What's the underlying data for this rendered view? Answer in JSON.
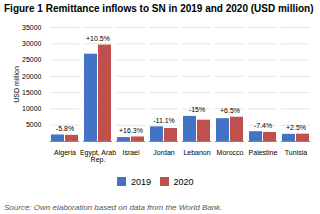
{
  "chart_data": {
    "type": "bar",
    "title": "Figure 1 Remittance inflows to SN in 2019 and 2020 (USD million)",
    "ylabel": "USD million",
    "categories": [
      "Algeria",
      "Egypt, Arab\nRep.",
      "Israel",
      "Jordan",
      "Lebanon",
      "Morocco",
      "Palestine",
      "Tunisia"
    ],
    "series": [
      {
        "name": "2019",
        "color": "#4472C4",
        "values": [
          2000,
          26800,
          1200,
          4500,
          7700,
          7000,
          3000,
          2200
        ]
      },
      {
        "name": "2020",
        "color": "#C0504D",
        "values": [
          1884,
          29600,
          1395,
          4000,
          6545,
          7455,
          2778,
          2255
        ]
      }
    ],
    "annotations": [
      {
        "category": "Algeria",
        "text": "-5.8%"
      },
      {
        "category": "Egypt, Arab\nRep.",
        "text": "+10.5%"
      },
      {
        "category": "Israel",
        "text": "+16.3%"
      },
      {
        "category": "Jordan",
        "text": "-11.1%"
      },
      {
        "category": "Lebanon",
        "text": "-15%"
      },
      {
        "category": "Morocco",
        "text": "+6.5%"
      },
      {
        "category": "Palestine",
        "text": "-7.4%"
      },
      {
        "category": "Tunisia",
        "text": "+2.5%"
      }
    ],
    "ylim": [
      0,
      35000
    ],
    "yticks": [
      5000,
      10000,
      15000,
      20000,
      25000,
      30000,
      35000
    ],
    "grid": true,
    "legend": "bottom",
    "caption": "Source: Own elaboration based on data from the World Bank."
  }
}
